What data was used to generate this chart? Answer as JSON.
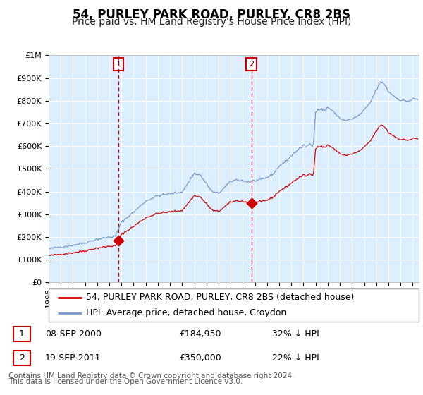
{
  "title": "54, PURLEY PARK ROAD, PURLEY, CR8 2BS",
  "subtitle": "Price paid vs. HM Land Registry's House Price Index (HPI)",
  "ylim": [
    0,
    1000000
  ],
  "xlim_start": 1995,
  "xlim_end": 2025.5,
  "background_color": "#ffffff",
  "plot_bg_color": "#ddeeff",
  "grid_color": "#ccddee",
  "purchase1_date": 2000.75,
  "purchase1_price": 184950,
  "purchase2_date": 2011.72,
  "purchase2_price": 350000,
  "red_line_color": "#cc0000",
  "blue_line_color": "#7799cc",
  "legend_label_red": "54, PURLEY PARK ROAD, PURLEY, CR8 2BS (detached house)",
  "legend_label_blue": "HPI: Average price, detached house, Croydon",
  "table_row1_num": "1",
  "table_row1_date": "08-SEP-2000",
  "table_row1_price": "£184,950",
  "table_row1_hpi": "32% ↓ HPI",
  "table_row2_num": "2",
  "table_row2_date": "19-SEP-2011",
  "table_row2_price": "£350,000",
  "table_row2_hpi": "22% ↓ HPI",
  "footer_line1": "Contains HM Land Registry data © Crown copyright and database right 2024.",
  "footer_line2": "This data is licensed under the Open Government Licence v3.0.",
  "title_fontsize": 12,
  "subtitle_fontsize": 10,
  "tick_fontsize": 8,
  "legend_fontsize": 9,
  "table_fontsize": 9,
  "footer_fontsize": 7.5
}
